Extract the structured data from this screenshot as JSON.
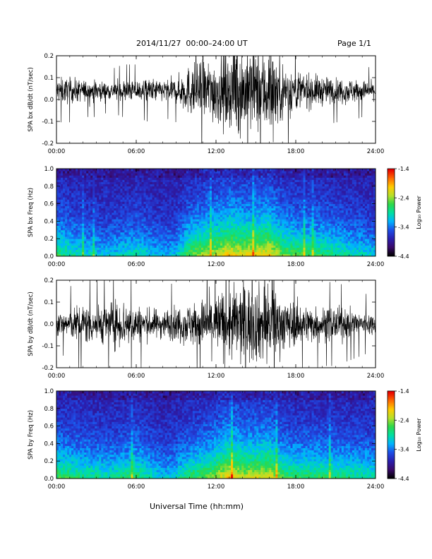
{
  "header": {
    "title": "2014/11/27  00:00–24:00 UT",
    "page": "Page 1/1"
  },
  "x_axis_title": "Universal Time (hh:mm)",
  "colors": {
    "trace": "#000000",
    "colormap": [
      "#000000",
      "#3a0a6a",
      "#2a1fb0",
      "#1e4fe8",
      "#00b4ff",
      "#00e0a0",
      "#2ed84a",
      "#b8e02a",
      "#ffcc00",
      "#ff6a00",
      "#e80000"
    ]
  },
  "chart_data": [
    {
      "type": "line",
      "ylabel": "SPA bx dB/dt (nT/sec)",
      "xlim": [
        0,
        24
      ],
      "ylim": [
        -0.2,
        0.2
      ],
      "x_ticks": [
        "00:00",
        "06:00",
        "12:00",
        "18:00",
        "24:00"
      ],
      "y_ticks": [
        "-0.2",
        "-0.1",
        "0.0",
        "0.1",
        "0.2"
      ],
      "y_tick_values": [
        -0.2,
        -0.1,
        0.0,
        0.1,
        0.2
      ],
      "mean": 0.04,
      "envelope": {
        "hours": [
          0,
          1,
          2,
          3,
          4,
          5,
          6,
          7,
          8,
          9,
          10,
          11,
          12,
          13,
          14,
          15,
          16,
          17,
          18,
          19,
          20,
          21,
          22,
          23,
          24
        ],
        "amplitude": [
          0.06,
          0.06,
          0.05,
          0.05,
          0.04,
          0.05,
          0.05,
          0.06,
          0.05,
          0.06,
          0.12,
          0.14,
          0.16,
          0.18,
          0.22,
          0.2,
          0.22,
          0.14,
          0.1,
          0.08,
          0.07,
          0.06,
          0.06,
          0.05,
          0.04
        ]
      }
    },
    {
      "type": "heatmap",
      "ylabel": "SPA bx Freq (Hz)",
      "xlim": [
        0,
        24
      ],
      "ylim": [
        0,
        1.0
      ],
      "x_ticks": [
        "00:00",
        "06:00",
        "12:00",
        "18:00",
        "24:00"
      ],
      "y_ticks": [
        "0.0",
        "0.2",
        "0.4",
        "0.6",
        "0.8",
        "1.0"
      ],
      "y_tick_values": [
        0.0,
        0.2,
        0.4,
        0.6,
        0.8,
        1.0
      ],
      "colorbar": {
        "label": "Log₁₀ Power",
        "range": [
          -4.4,
          -1.4
        ],
        "ticks": [
          "-1.4",
          "-2.4",
          "-3.4",
          "-4.4"
        ],
        "tick_values": [
          -1.4,
          -2.4,
          -3.4,
          -4.4
        ]
      },
      "activity_hours": [
        0,
        2,
        4,
        6,
        8,
        9,
        10,
        11,
        12,
        13,
        14,
        15,
        16,
        17,
        18,
        20,
        22,
        24
      ],
      "activity_level": [
        0.55,
        0.4,
        0.35,
        0.45,
        0.3,
        0.35,
        0.6,
        0.7,
        0.75,
        0.85,
        0.8,
        0.8,
        0.85,
        0.65,
        0.6,
        0.55,
        0.45,
        0.35
      ]
    },
    {
      "type": "line",
      "ylabel": "SPA by dB/dt (nT/sec)",
      "xlim": [
        0,
        24
      ],
      "ylim": [
        -0.2,
        0.2
      ],
      "x_ticks": [
        "00:00",
        "06:00",
        "12:00",
        "18:00",
        "24:00"
      ],
      "y_ticks": [
        "-0.2",
        "-0.1",
        "0.0",
        "0.1",
        "0.2"
      ],
      "y_tick_values": [
        -0.2,
        -0.1,
        0.0,
        0.1,
        0.2
      ],
      "mean": 0.0,
      "envelope": {
        "hours": [
          0,
          1,
          2,
          3,
          4,
          5,
          6,
          7,
          8,
          9,
          10,
          11,
          12,
          13,
          14,
          15,
          16,
          17,
          18,
          19,
          20,
          21,
          22,
          23,
          24
        ],
        "amplitude": [
          0.05,
          0.07,
          0.1,
          0.09,
          0.1,
          0.12,
          0.09,
          0.07,
          0.07,
          0.08,
          0.1,
          0.12,
          0.15,
          0.18,
          0.2,
          0.18,
          0.2,
          0.13,
          0.1,
          0.09,
          0.08,
          0.08,
          0.07,
          0.06,
          0.05
        ]
      }
    },
    {
      "type": "heatmap",
      "ylabel": "SPA by Freq (Hz)",
      "xlim": [
        0,
        24
      ],
      "ylim": [
        0,
        1.0
      ],
      "x_ticks": [
        "00:00",
        "06:00",
        "12:00",
        "18:00",
        "24:00"
      ],
      "y_ticks": [
        "0.0",
        "0.2",
        "0.4",
        "0.6",
        "0.8",
        "1.0"
      ],
      "y_tick_values": [
        0.0,
        0.2,
        0.4,
        0.6,
        0.8,
        1.0
      ],
      "colorbar": {
        "label": "Log₁₀ Power",
        "range": [
          -4.4,
          -1.4
        ],
        "ticks": [
          "-1.4",
          "-2.4",
          "-3.4",
          "-4.4"
        ],
        "tick_values": [
          -1.4,
          -2.4,
          -3.4,
          -4.4
        ]
      },
      "activity_hours": [
        0,
        2,
        4,
        6,
        8,
        9,
        10,
        11,
        12,
        13,
        14,
        15,
        16,
        17,
        18,
        20,
        22,
        24
      ],
      "activity_level": [
        0.6,
        0.5,
        0.45,
        0.55,
        0.35,
        0.4,
        0.55,
        0.6,
        0.7,
        0.85,
        0.75,
        0.75,
        0.8,
        0.6,
        0.55,
        0.55,
        0.5,
        0.45
      ]
    }
  ]
}
